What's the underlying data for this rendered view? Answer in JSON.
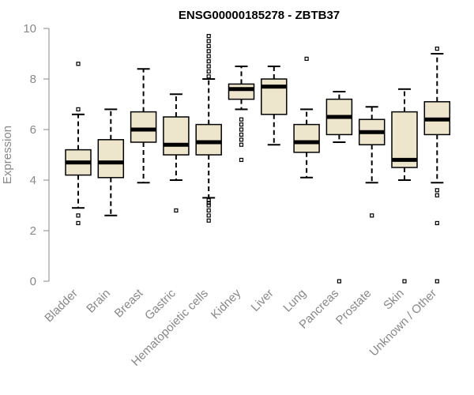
{
  "chart_data": {
    "type": "boxplot",
    "title": "ENSG00000185278 - ZBTB37",
    "xlabel": "",
    "ylabel": "Expression",
    "ylim": [
      0,
      10
    ],
    "yticks": [
      0,
      2,
      4,
      6,
      8,
      10
    ],
    "grid": false,
    "legend": "none",
    "colors": {
      "box_fill": "#ede6cc",
      "stroke": "#000000",
      "axis": "#888888"
    },
    "categories": [
      "Bladder",
      "Brain",
      "Breast",
      "Gastric",
      "Hematopoietic cells",
      "Kidney",
      "Liver",
      "Lung",
      "Pancreas",
      "Prostate",
      "Skin",
      "Unknown / Other"
    ],
    "boxes": [
      {
        "whisker_low": 2.9,
        "q1": 4.2,
        "median": 4.7,
        "q3": 5.2,
        "whisker_high": 6.6,
        "outliers": [
          2.3,
          2.6,
          6.8,
          8.6
        ]
      },
      {
        "whisker_low": 2.6,
        "q1": 4.1,
        "median": 4.7,
        "q3": 5.6,
        "whisker_high": 6.8,
        "outliers": []
      },
      {
        "whisker_low": 3.9,
        "q1": 5.5,
        "median": 6.0,
        "q3": 6.7,
        "whisker_high": 8.4,
        "outliers": []
      },
      {
        "whisker_low": 4.0,
        "q1": 5.0,
        "median": 5.4,
        "q3": 6.5,
        "whisker_high": 7.4,
        "outliers": [
          2.8
        ]
      },
      {
        "whisker_low": 3.3,
        "q1": 5.0,
        "median": 5.5,
        "q3": 6.2,
        "whisker_high": 8.0,
        "outliers": [
          2.4,
          2.6,
          2.8,
          3.0,
          3.1,
          3.2,
          8.1,
          8.3,
          8.5,
          8.7,
          8.9,
          9.1,
          9.3,
          9.5,
          9.7
        ]
      },
      {
        "whisker_low": 6.8,
        "q1": 7.2,
        "median": 7.6,
        "q3": 7.8,
        "whisker_high": 8.5,
        "outliers": [
          4.8,
          5.4,
          5.6,
          5.8,
          6.0,
          6.2,
          6.4
        ]
      },
      {
        "whisker_low": 5.4,
        "q1": 6.6,
        "median": 7.7,
        "q3": 8.0,
        "whisker_high": 8.5,
        "outliers": []
      },
      {
        "whisker_low": 4.1,
        "q1": 5.1,
        "median": 5.5,
        "q3": 6.2,
        "whisker_high": 6.8,
        "outliers": [
          8.8
        ]
      },
      {
        "whisker_low": 5.5,
        "q1": 5.8,
        "median": 6.5,
        "q3": 7.2,
        "whisker_high": 7.5,
        "outliers": [
          0.0
        ]
      },
      {
        "whisker_low": 3.9,
        "q1": 5.4,
        "median": 5.9,
        "q3": 6.4,
        "whisker_high": 6.9,
        "outliers": [
          2.6
        ]
      },
      {
        "whisker_low": 4.0,
        "q1": 4.5,
        "median": 4.8,
        "q3": 6.7,
        "whisker_high": 7.6,
        "outliers": [
          0.0
        ]
      },
      {
        "whisker_low": 3.9,
        "q1": 5.8,
        "median": 6.4,
        "q3": 7.1,
        "whisker_high": 9.0,
        "outliers": [
          0.0,
          2.3,
          3.4,
          3.6,
          9.2
        ]
      }
    ]
  }
}
